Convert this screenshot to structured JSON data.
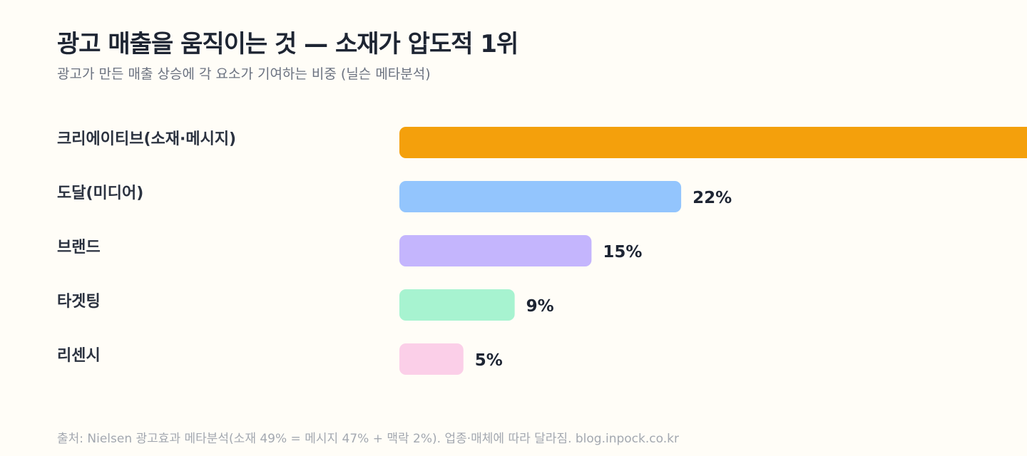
{
  "header": {
    "title": "광고 매출을 움직이는 것 — 소재가 압도적 1위",
    "subtitle": "광고가 만든 매출 상승에 각 요소가 기여하는 비중 (닐슨 메타분석)"
  },
  "footnote": "출처: Nielsen 광고효과 메타분석(소재 49% = 메시지 47% + 맥락 2%). 업종·매체에 따라 달라짐. blog.inpock.co.kr",
  "chart_data": {
    "type": "bar",
    "orientation": "horizontal",
    "title": "광고 매출을 움직이는 것 — 소재가 압도적 1위",
    "subtitle": "광고가 만든 매출 상승에 각 요소가 기여하는 비중 (닐슨 메타분석)",
    "categories": [
      "크리에이티브(소재·메시지)",
      "도달(미디어)",
      "브랜드",
      "타겟팅",
      "리센시"
    ],
    "values": [
      49,
      22,
      15,
      9,
      5
    ],
    "value_labels": [
      "",
      "22%",
      "15%",
      "9%",
      "5%"
    ],
    "colors": [
      "#f4a00c",
      "#93c5fd",
      "#c4b5fd",
      "#a7f3d0",
      "#fbcfe8"
    ],
    "xlim": [
      0,
      49
    ],
    "unit": "%",
    "grid": false,
    "legend": "none"
  }
}
